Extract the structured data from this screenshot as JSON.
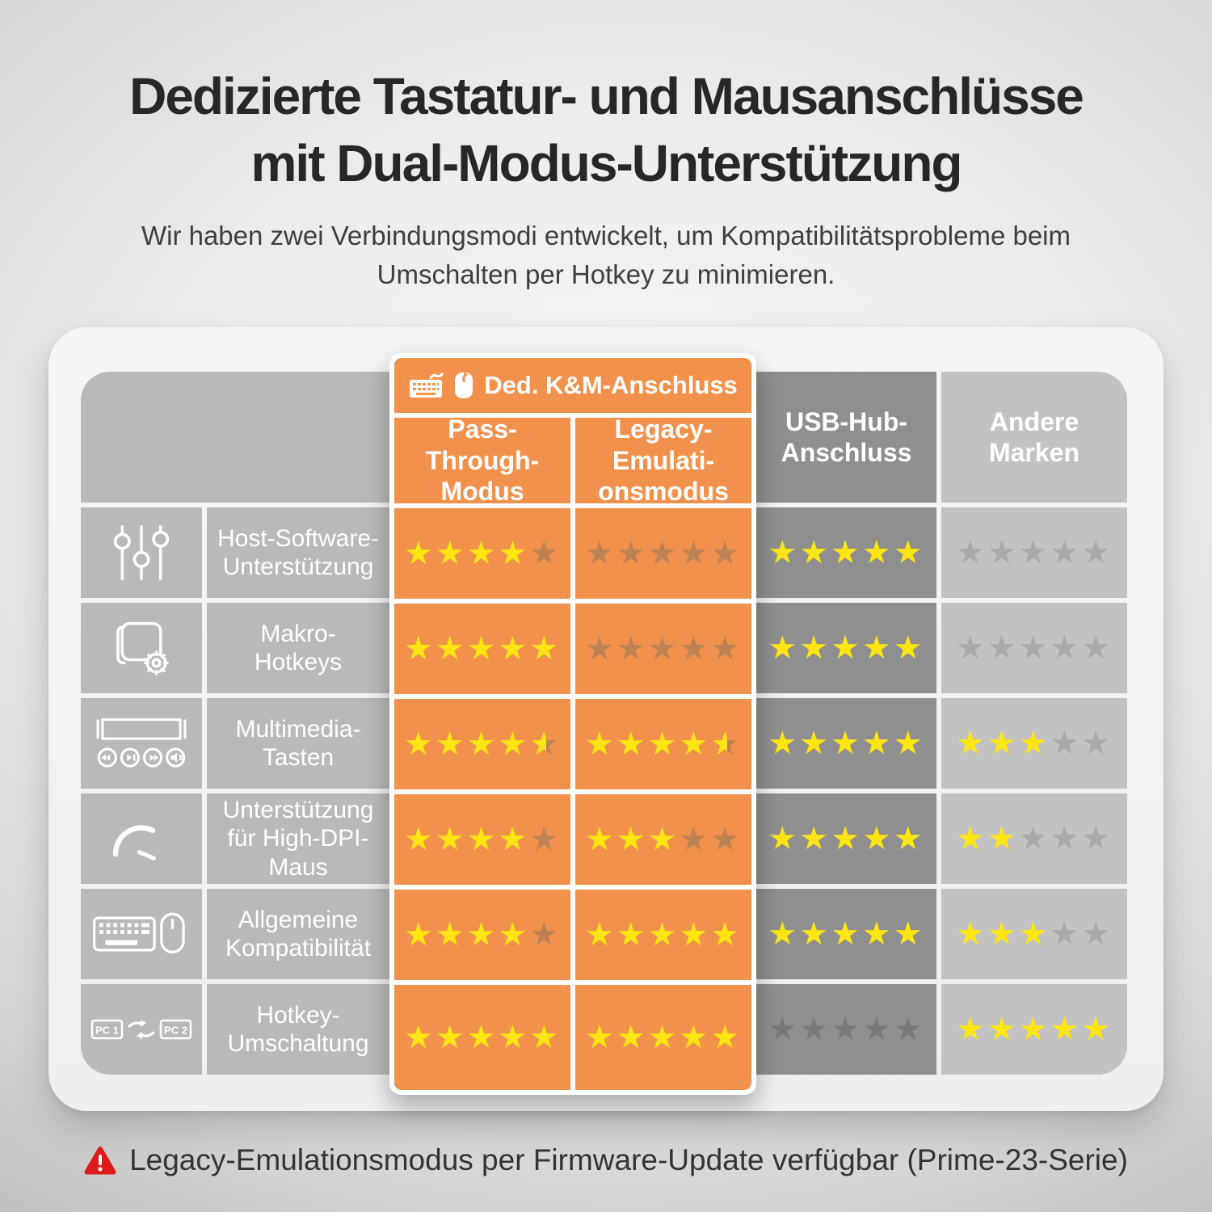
{
  "header": {
    "title_line1": "Dedizierte Tastatur- und Mausanschlüsse",
    "title_line2": "mit Dual-Modus-Unterstützung",
    "subtitle": "Wir haben zwei Verbindungsmodi entwickelt, um Kompatibilitätsprobleme beim\nUmschalten per Hotkey zu minimieren."
  },
  "table": {
    "group_header": {
      "label": "Ded. K&M-Anschluss",
      "icons": [
        "keyboard-icon",
        "mouse-icon"
      ]
    },
    "columns": [
      {
        "id": "pass",
        "label": "Pass-Through-\nModus",
        "style": "orange"
      },
      {
        "id": "legacy",
        "label": "Legacy-\nEmulati-\nonsmodus",
        "style": "orange"
      },
      {
        "id": "usb",
        "label": "USB-Hub-\nAnschluss",
        "style": "dark"
      },
      {
        "id": "other",
        "label": "Andere\nMarken",
        "style": "light"
      }
    ],
    "rows": [
      {
        "icon": "sliders-icon",
        "label": "Host-Software-\nUnterstützung",
        "ratings": [
          4,
          0,
          5,
          0
        ]
      },
      {
        "icon": "macro-icon",
        "label": "Makro-\nHotkeys",
        "ratings": [
          5,
          0,
          5,
          0
        ]
      },
      {
        "icon": "multimedia-icon",
        "label": "Multimedia-\nTasten",
        "ratings": [
          4.5,
          4.5,
          5,
          3
        ]
      },
      {
        "icon": "speedometer-icon",
        "label": "Unterstützung\nfür High-DPI-\nMaus",
        "ratings": [
          4,
          3,
          5,
          2
        ]
      },
      {
        "icon": "keyboard-mouse-icon",
        "label": "Allgemeine\nKompatibilität",
        "ratings": [
          4,
          5,
          5,
          3
        ]
      },
      {
        "icon": "pc-switch-icon",
        "label": "Hotkey-\nUmschaltung",
        "ratings": [
          5,
          5,
          0,
          5
        ]
      }
    ],
    "rating_scale_max": 5
  },
  "chart_data": {
    "type": "table",
    "title": "Dedizierte Tastatur- und Mausanschlüsse mit Dual-Modus-Unterstützung",
    "categories": [
      "Host-Software-Unterstützung",
      "Makro-Hotkeys",
      "Multimedia-Tasten",
      "Unterstützung für High-DPI-Maus",
      "Allgemeine Kompatibilität",
      "Hotkey-Umschaltung"
    ],
    "series": [
      {
        "name": "Ded. K&M-Anschluss – Pass-Through-Modus",
        "values": [
          4,
          5,
          4.5,
          4,
          4,
          5
        ]
      },
      {
        "name": "Ded. K&M-Anschluss – Legacy-Emulationsmodus",
        "values": [
          0,
          0,
          4.5,
          3,
          5,
          5
        ]
      },
      {
        "name": "USB-Hub-Anschluss",
        "values": [
          5,
          5,
          5,
          5,
          5,
          0
        ]
      },
      {
        "name": "Andere Marken",
        "values": [
          0,
          0,
          3,
          2,
          3,
          5
        ]
      }
    ],
    "value_range": [
      0,
      5
    ]
  },
  "footer": {
    "note": "Legacy-Emulationsmodus per Firmware-Update verfügbar (Prime-23-Serie)"
  },
  "colors": {
    "orange": "#f2914c",
    "star_filled": "#ffe612",
    "star_empty_orange": "#bc8254",
    "star_empty_dark": "#797979",
    "star_empty_light": "#a9a9a9",
    "cell_gray": "#b9b9b9",
    "cell_dark": "#8f8f8f",
    "cell_light": "#c2c2c2",
    "note_red": "#dc1a1a"
  }
}
